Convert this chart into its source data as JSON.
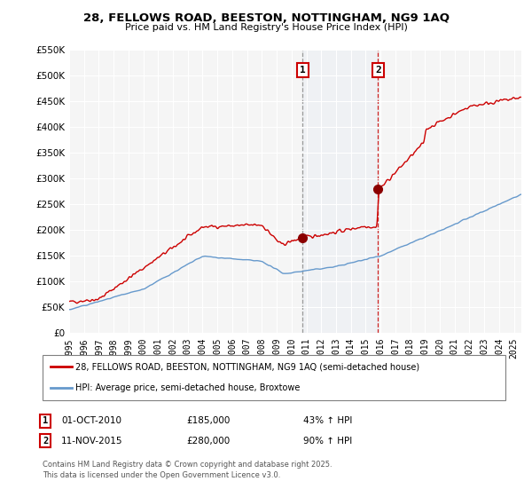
{
  "title": "28, FELLOWS ROAD, BEESTON, NOTTINGHAM, NG9 1AQ",
  "subtitle": "Price paid vs. HM Land Registry's House Price Index (HPI)",
  "property_label": "28, FELLOWS ROAD, BEESTON, NOTTINGHAM, NG9 1AQ (semi-detached house)",
  "hpi_label": "HPI: Average price, semi-detached house, Broxtowe",
  "footnote1": "Contains HM Land Registry data © Crown copyright and database right 2025.",
  "footnote2": "This data is licensed under the Open Government Licence v3.0.",
  "property_color": "#cc0000",
  "hpi_color": "#6699cc",
  "vline1_color": "#aaaaaa",
  "vline2_color": "#cc0000",
  "transaction1_date": "01-OCT-2010",
  "transaction1_price": "£185,000",
  "transaction1_label": "43% ↑ HPI",
  "transaction1_x": 2010.75,
  "transaction1_y": 185000,
  "transaction2_date": "11-NOV-2015",
  "transaction2_price": "£280,000",
  "transaction2_label": "90% ↑ HPI",
  "transaction2_x": 2015.84,
  "transaction2_y": 280000,
  "ylim": [
    0,
    550000
  ],
  "xlim": [
    1995,
    2025.5
  ],
  "ytick_step": 50000,
  "background_color": "#ffffff",
  "plot_bg_color": "#f5f5f5"
}
